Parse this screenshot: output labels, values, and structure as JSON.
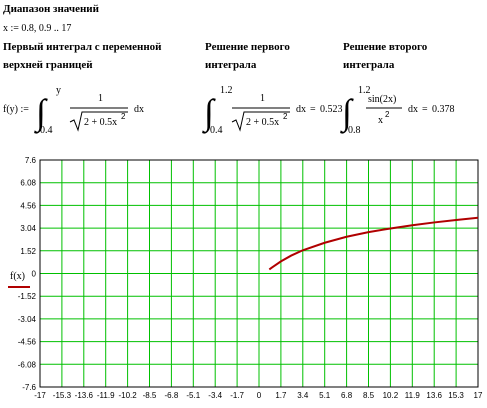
{
  "header": {
    "title": "Диапазон значений",
    "range": "x := 0.8, 0.9 .. 17"
  },
  "columns": [
    {
      "heading": [
        "Первый интеграл с переменной",
        "верхней границей"
      ],
      "formula": {
        "lhs": "f(y) :=",
        "upper": "y",
        "lower": "0.4",
        "numerator": "1",
        "denominator": "2 + 0.5x",
        "power": "2",
        "differential": "dx"
      }
    },
    {
      "heading": [
        "Решение первого",
        "интеграла"
      ],
      "formula": {
        "upper": "1.2",
        "lower": "0.4",
        "numerator": "1",
        "denominator": "2 + 0.5x",
        "power": "2",
        "differential": "dx",
        "equals": "=",
        "result": 0.523
      }
    },
    {
      "heading": [
        "Решение второго",
        "интеграла"
      ],
      "formula": {
        "upper": "1.2",
        "lower": "0.8",
        "numerator": "sin(2x)",
        "denominator": "x",
        "power": "2",
        "differential": "dx",
        "equals": "=",
        "result": 0.378
      }
    }
  ],
  "chart_data": {
    "type": "line",
    "series": [
      {
        "name": "f(x)",
        "color": "#b00000",
        "x": [
          0.8,
          1.0,
          1.7,
          2.5,
          3.4,
          5.1,
          6.8,
          8.5,
          10.2,
          11.9,
          13.6,
          15.3,
          17
        ],
        "values": [
          0.271,
          0.4,
          0.81,
          1.2,
          1.555,
          2.058,
          2.46,
          2.768,
          3.016,
          3.233,
          3.419,
          3.585,
          3.733
        ]
      }
    ],
    "xlim": [
      -17,
      17
    ],
    "xticks": [
      -17,
      -15.3,
      -13.6,
      -11.9,
      -10.2,
      -8.5,
      -6.8,
      -5.1,
      -3.4,
      -1.7,
      0,
      1.7,
      3.4,
      5.1,
      6.8,
      8.5,
      10.2,
      11.9,
      13.6,
      15.3,
      17
    ],
    "ylim": [
      -7.6,
      7.6
    ],
    "yticks": [
      -7.6,
      -6.08,
      -4.56,
      -3.04,
      -1.52,
      0,
      1.52,
      3.04,
      4.56,
      6.08,
      7.6
    ],
    "grid": true,
    "grid_color": "#00c000"
  }
}
